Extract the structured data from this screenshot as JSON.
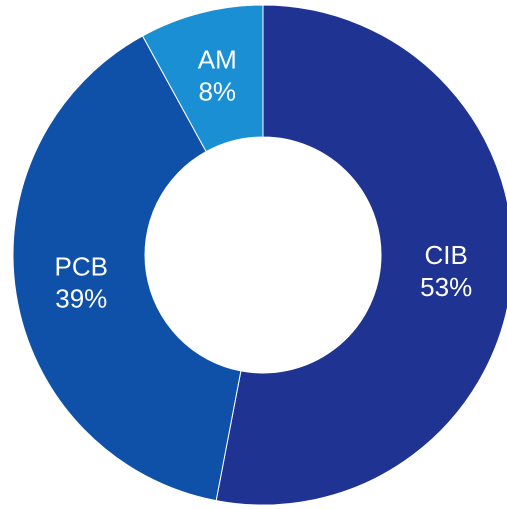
{
  "chart_data": {
    "type": "pie",
    "categories": [
      "CIB",
      "PCB",
      "AM"
    ],
    "values": [
      53,
      39,
      8
    ],
    "value_labels": [
      "53%",
      "39%",
      "8%"
    ],
    "colors": [
      "#1e3392",
      "#0f50a8",
      "#1a8fd4"
    ],
    "donut": true
  }
}
